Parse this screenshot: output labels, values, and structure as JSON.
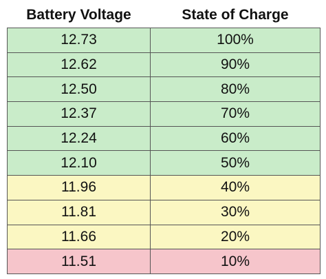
{
  "table": {
    "header": [
      "Battery Voltage",
      "State of Charge"
    ],
    "rows": [
      [
        "12.73",
        "100%"
      ],
      [
        "12.62",
        "90%"
      ],
      [
        "12.50",
        "80%"
      ],
      [
        "12.37",
        "70%"
      ],
      [
        "12.24",
        "60%"
      ],
      [
        "12.10",
        "50%"
      ],
      [
        "11.96",
        "40%"
      ],
      [
        "11.81",
        "30%"
      ],
      [
        "11.66",
        "20%"
      ],
      [
        "11.51",
        "10%"
      ]
    ]
  }
}
